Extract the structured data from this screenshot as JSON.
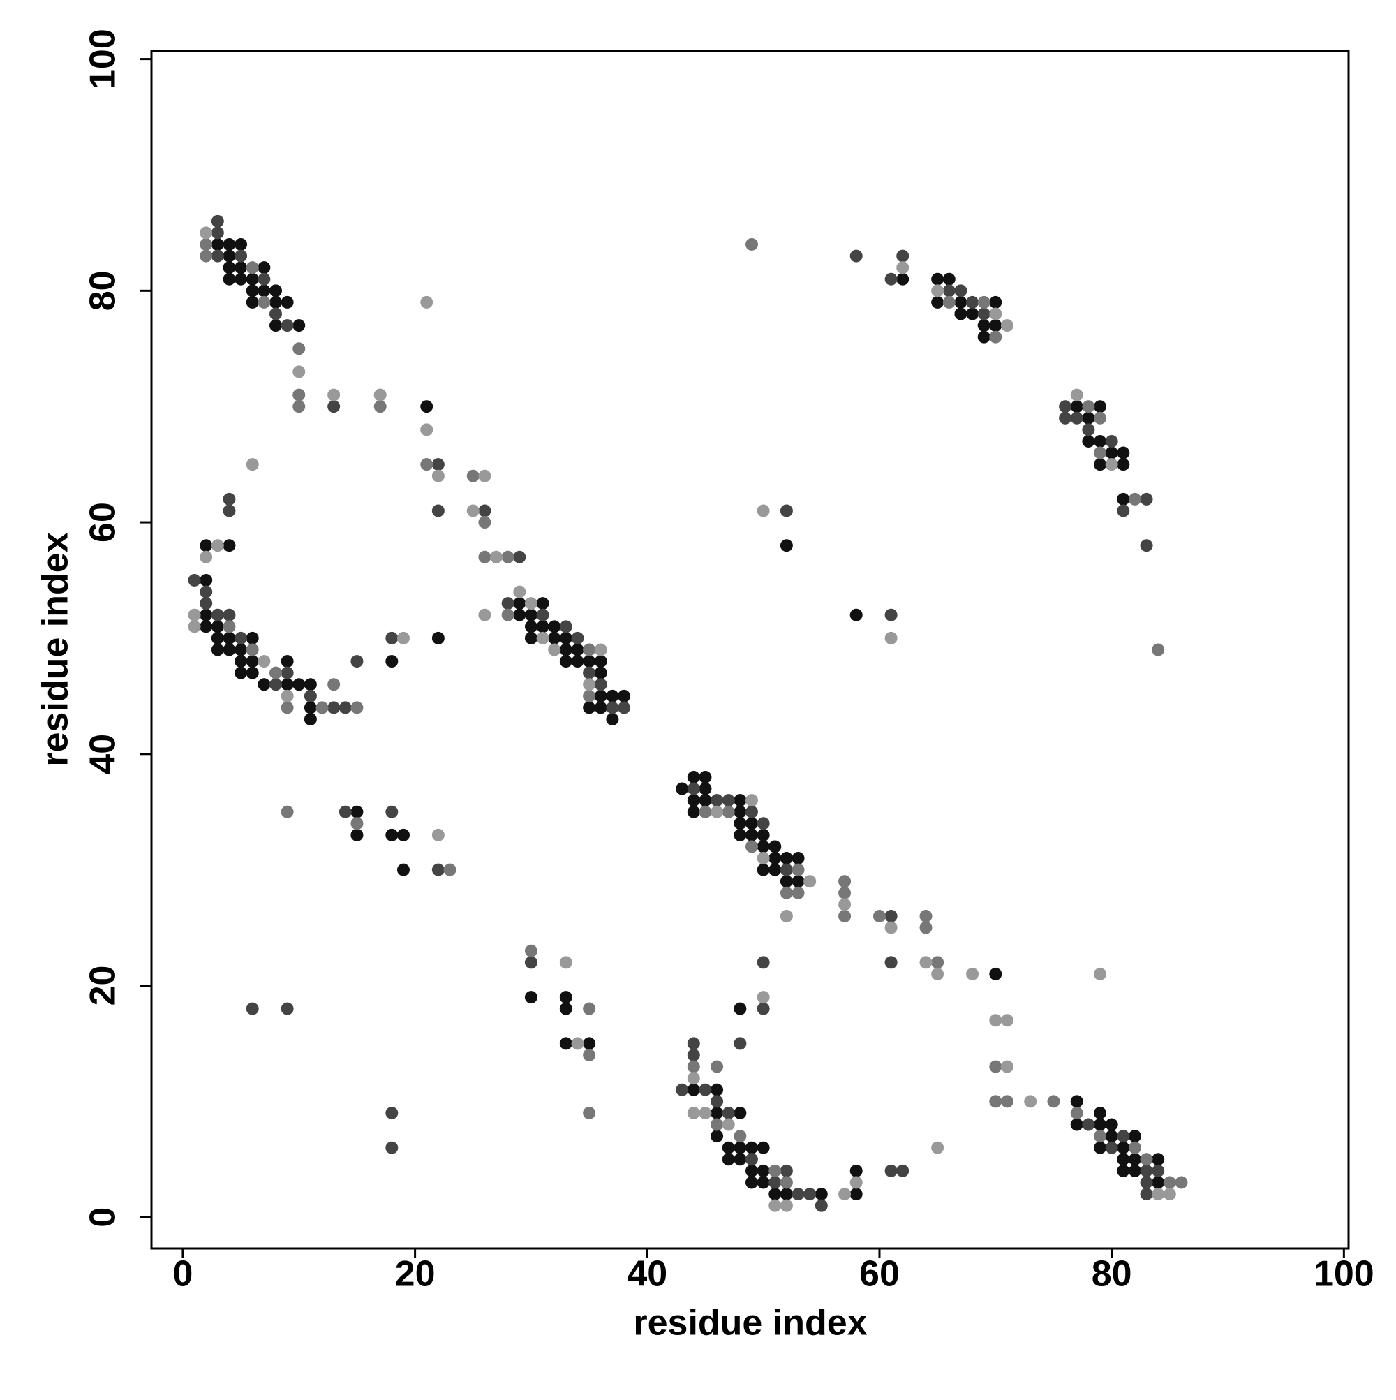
{
  "chart_data": {
    "type": "scatter",
    "xlabel": "residue index",
    "ylabel": "residue index",
    "xlim": [
      -2.7,
      100.4
    ],
    "ylim": [
      -2.7,
      100.7
    ],
    "xticks": [
      0,
      20,
      40,
      60,
      80,
      100
    ],
    "yticks": [
      0,
      20,
      40,
      60,
      80,
      100
    ],
    "series": [
      {
        "color": "#111111",
        "x": [
          3,
          4,
          4,
          4,
          4,
          5,
          5,
          5,
          6,
          6,
          6,
          7,
          7,
          8,
          8,
          8,
          9,
          10,
          21,
          22,
          29,
          29,
          30,
          30,
          30,
          31,
          31,
          32,
          32,
          33,
          33,
          33,
          34,
          34,
          35,
          35,
          36,
          36,
          36,
          36,
          37,
          37,
          38,
          2,
          2,
          2,
          2,
          3,
          3,
          3,
          4,
          4,
          4,
          5,
          5,
          5,
          6,
          6,
          6,
          7,
          9,
          9,
          10,
          11,
          11,
          11,
          18,
          15,
          15,
          18,
          19,
          19,
          30,
          33,
          33,
          33,
          35,
          43,
          44,
          44,
          44,
          45,
          45,
          45,
          48,
          48,
          48,
          48,
          49,
          49,
          50,
          50,
          50,
          51,
          51,
          51,
          52,
          52,
          53,
          53,
          70,
          44,
          46,
          46,
          46,
          47,
          47,
          48,
          48,
          48,
          48,
          49,
          49,
          49,
          50,
          50,
          50,
          51,
          52,
          55,
          58,
          58,
          77,
          77,
          79,
          79,
          79,
          80,
          80,
          81,
          81,
          81,
          82,
          82,
          82,
          84,
          84,
          62,
          65,
          65,
          66,
          67,
          67,
          68,
          69,
          69,
          70,
          70,
          77,
          78,
          78,
          79,
          79,
          79,
          80,
          81,
          81,
          81,
          52,
          58
        ],
        "y": [
          84,
          84,
          83,
          82,
          81,
          84,
          82,
          81,
          81,
          80,
          79,
          82,
          80,
          80,
          79,
          77,
          79,
          77,
          70,
          50,
          53,
          52,
          52,
          51,
          50,
          53,
          51,
          51,
          50,
          50,
          49,
          48,
          49,
          48,
          48,
          44,
          48,
          47,
          45,
          44,
          45,
          43,
          45,
          58,
          55,
          52,
          51,
          51,
          50,
          49,
          58,
          50,
          49,
          49,
          48,
          47,
          50,
          48,
          47,
          46,
          48,
          46,
          46,
          46,
          44,
          43,
          48,
          35,
          33,
          33,
          33,
          30,
          19,
          19,
          18,
          15,
          15,
          37,
          38,
          36,
          35,
          38,
          37,
          36,
          36,
          35,
          34,
          33,
          34,
          33,
          33,
          32,
          30,
          32,
          31,
          30,
          31,
          29,
          31,
          29,
          21,
          11,
          11,
          9,
          7,
          6,
          5,
          18,
          9,
          6,
          5,
          6,
          4,
          3,
          6,
          4,
          3,
          2,
          2,
          2,
          4,
          2,
          10,
          8,
          9,
          8,
          6,
          8,
          7,
          6,
          5,
          4,
          7,
          5,
          4,
          5,
          3,
          81,
          81,
          79,
          81,
          79,
          78,
          78,
          77,
          76,
          79,
          77,
          70,
          69,
          67,
          70,
          67,
          65,
          66,
          66,
          65,
          62,
          58,
          52
        ]
      },
      {
        "color": "#444444",
        "x": [
          3,
          3,
          3,
          5,
          7,
          8,
          9,
          13,
          22,
          22,
          26,
          28,
          29,
          31,
          33,
          34,
          35,
          36,
          37,
          38,
          1,
          2,
          2,
          3,
          4,
          4,
          4,
          5,
          8,
          9,
          11,
          13,
          14,
          15,
          18,
          6,
          9,
          14,
          18,
          18,
          18,
          22,
          30,
          44,
          46,
          47,
          49,
          50,
          52,
          61,
          61,
          43,
          44,
          44,
          45,
          46,
          47,
          48,
          49,
          50,
          50,
          51,
          52,
          53,
          54,
          55,
          61,
          62,
          78,
          80,
          81,
          83,
          83,
          83,
          84,
          58,
          61,
          62,
          66,
          67,
          68,
          69,
          76,
          76,
          77,
          78,
          80,
          81,
          83,
          83,
          52,
          61
        ],
        "y": [
          86,
          85,
          83,
          83,
          81,
          78,
          77,
          70,
          65,
          61,
          61,
          53,
          57,
          52,
          51,
          50,
          47,
          46,
          44,
          44,
          55,
          54,
          53,
          52,
          62,
          61,
          52,
          50,
          46,
          47,
          45,
          44,
          44,
          48,
          50,
          18,
          18,
          35,
          35,
          9,
          6,
          30,
          22,
          37,
          36,
          36,
          35,
          34,
          30,
          26,
          22,
          11,
          15,
          14,
          11,
          10,
          9,
          15,
          5,
          22,
          18,
          3,
          4,
          2,
          2,
          1,
          4,
          4,
          8,
          6,
          7,
          4,
          3,
          2,
          4,
          83,
          81,
          83,
          80,
          80,
          79,
          78,
          70,
          69,
          69,
          68,
          67,
          61,
          62,
          58,
          61,
          52
        ]
      },
      {
        "color": "#777777",
        "x": [
          2,
          2,
          6,
          7,
          10,
          10,
          10,
          17,
          21,
          25,
          26,
          26,
          28,
          28,
          35,
          35,
          4,
          6,
          8,
          9,
          12,
          13,
          15,
          9,
          15,
          23,
          30,
          35,
          35,
          35,
          45,
          47,
          49,
          52,
          53,
          53,
          57,
          57,
          57,
          60,
          64,
          64,
          65,
          70,
          70,
          71,
          75,
          44,
          46,
          46,
          48,
          51,
          52,
          77,
          79,
          82,
          83,
          85,
          86,
          49,
          66,
          69,
          70,
          78,
          79,
          79,
          82,
          84
        ],
        "y": [
          84,
          83,
          82,
          79,
          75,
          71,
          70,
          70,
          65,
          64,
          60,
          57,
          57,
          52,
          49,
          45,
          51,
          49,
          47,
          44,
          44,
          46,
          44,
          35,
          34,
          30,
          23,
          18,
          14,
          9,
          35,
          35,
          32,
          28,
          30,
          28,
          29,
          28,
          26,
          26,
          26,
          25,
          22,
          13,
          10,
          10,
          10,
          13,
          13,
          8,
          7,
          4,
          3,
          9,
          7,
          6,
          5,
          3,
          3,
          84,
          79,
          79,
          76,
          70,
          69,
          66,
          62,
          49
        ]
      },
      {
        "color": "#999999",
        "x": [
          2,
          10,
          13,
          17,
          21,
          21,
          22,
          25,
          26,
          26,
          27,
          29,
          30,
          31,
          32,
          35,
          36,
          1,
          1,
          2,
          3,
          6,
          7,
          9,
          19,
          22,
          33,
          34,
          46,
          49,
          50,
          54,
          52,
          57,
          61,
          64,
          65,
          68,
          70,
          71,
          71,
          73,
          79,
          44,
          44,
          45,
          47,
          50,
          51,
          52,
          57,
          58,
          65,
          84,
          85,
          62,
          65,
          70,
          71,
          77,
          80,
          50,
          61
        ],
        "y": [
          85,
          73,
          71,
          71,
          79,
          68,
          64,
          61,
          64,
          52,
          57,
          54,
          53,
          50,
          49,
          46,
          49,
          52,
          51,
          57,
          58,
          65,
          48,
          45,
          50,
          33,
          22,
          15,
          35,
          36,
          31,
          29,
          26,
          27,
          25,
          22,
          21,
          21,
          17,
          17,
          13,
          10,
          21,
          12,
          9,
          9,
          8,
          19,
          1,
          1,
          2,
          3,
          6,
          2,
          2,
          82,
          80,
          78,
          77,
          71,
          65,
          61,
          50
        ]
      }
    ]
  }
}
